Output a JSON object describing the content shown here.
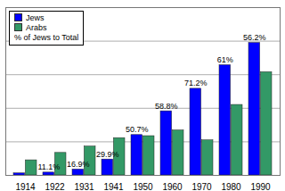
{
  "chart_data": {
    "type": "bar",
    "categories": [
      "1914",
      "1922",
      "1931",
      "1941",
      "1950",
      "1960",
      "1970",
      "1980",
      "1990"
    ],
    "series": [
      {
        "name": "Jews",
        "color": "#0000ff",
        "values": [
          60,
          84,
          175,
          474,
          1203,
          1911,
          2582,
          3283,
          3947
        ]
      },
      {
        "name": "Arabs",
        "color": "#339966",
        "values": [
          450,
          670,
          860,
          1111,
          1170,
          1340,
          1045,
          2100,
          3076
        ]
      }
    ],
    "annotations": {
      "name": "% of Jews to Total",
      "labels": [
        null,
        "11.1%",
        "16.9%",
        "29.9%",
        "50.7%",
        "58.8%",
        "71.2%",
        "61%",
        "56.2%"
      ]
    },
    "ylim": [
      0,
      5000
    ],
    "yticks": [
      0,
      1000,
      2000,
      3000,
      4000,
      5000
    ],
    "grid": true,
    "legend": "top-left",
    "tick_labels": "x"
  }
}
